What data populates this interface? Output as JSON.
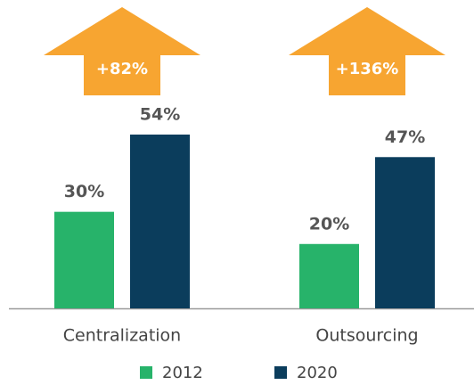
{
  "chart_data": {
    "type": "bar",
    "categories": [
      "Centralization",
      "Outsourcing"
    ],
    "series": [
      {
        "name": "2012",
        "color": "#27b36a",
        "values": [
          30,
          20
        ],
        "value_labels": [
          "30%",
          "20%"
        ]
      },
      {
        "name": "2020",
        "color": "#0b3d5c",
        "values": [
          54,
          47
        ],
        "value_labels": [
          "54%",
          "47%"
        ]
      }
    ],
    "annotations": [
      "+82%",
      "+136%"
    ],
    "annotation_color": "#f7a531"
  }
}
